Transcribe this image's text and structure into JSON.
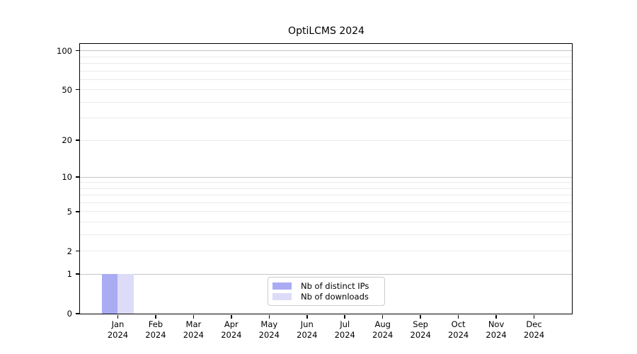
{
  "chart_data": {
    "type": "bar",
    "title": "OptiLCMS 2024",
    "categories": [
      "Jan",
      "Feb",
      "Mar",
      "Apr",
      "May",
      "Jun",
      "Jul",
      "Aug",
      "Sep",
      "Oct",
      "Nov",
      "Dec"
    ],
    "category_year": "2024",
    "series": [
      {
        "name": "Nb of distinct IPs",
        "color": "#a9abf3",
        "values": [
          1,
          0,
          0,
          0,
          0,
          0,
          0,
          0,
          0,
          0,
          0,
          0
        ]
      },
      {
        "name": "Nb of downloads",
        "color": "#dcdcf8",
        "values": [
          1,
          0,
          0,
          0,
          0,
          0,
          0,
          0,
          0,
          0,
          0,
          0
        ]
      }
    ],
    "xlabel": "",
    "ylabel": "",
    "yscale": "log10(value+1)",
    "yticks": [
      0,
      1,
      2,
      5,
      10,
      20,
      50,
      100
    ],
    "minor_grid_values": [
      2,
      3,
      4,
      5,
      6,
      7,
      8,
      9,
      20,
      30,
      40,
      50,
      60,
      70,
      80,
      90
    ],
    "major_grid_values": [
      1,
      10,
      100
    ],
    "ylim": [
      0,
      113
    ],
    "grid": "on",
    "legend_position": "lower center"
  },
  "colors": {
    "background": "#ffffff",
    "axis": "#000000",
    "major_grid": "#c3c3c3",
    "minor_grid": "#ebebeb",
    "legend_border": "#cccccc",
    "text": "#000000"
  }
}
